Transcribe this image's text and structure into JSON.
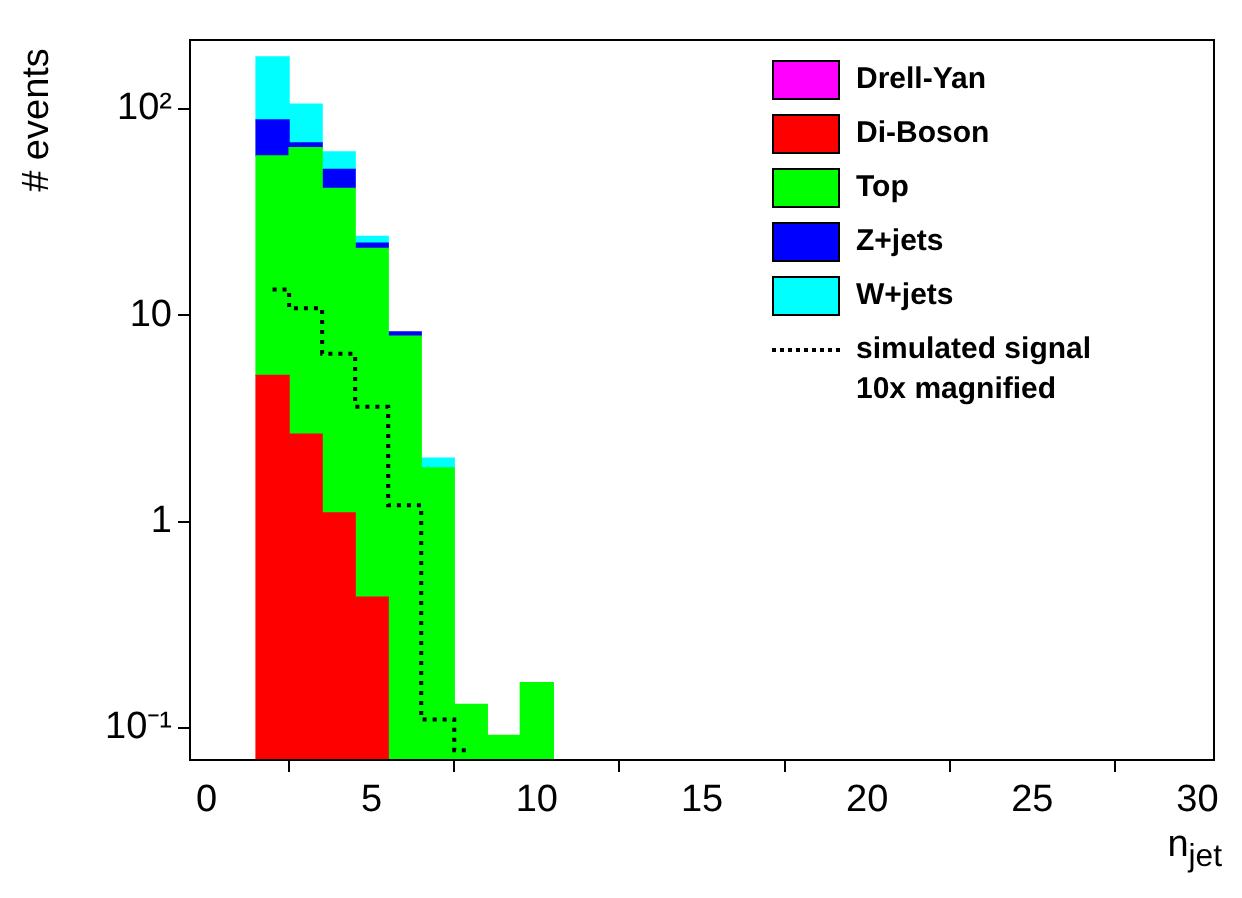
{
  "chart_data": {
    "type": "bar",
    "xlabel": "n$_{jet}$",
    "ylabel": "# events",
    "x": [
      2,
      3,
      4,
      5,
      6,
      7,
      8,
      9,
      10
    ],
    "stacked": true,
    "log": "y",
    "grid": false,
    "legend": "top right",
    "xlim": [
      -0.5,
      30.5
    ],
    "xticks": [
      0,
      5,
      10,
      15,
      20,
      25,
      30
    ],
    "ylim": [
      0.07,
      215
    ],
    "yticks": [
      {
        "value": 0.1,
        "label": "10⁻¹"
      },
      1,
      10,
      {
        "value": 100,
        "label": "10²"
      }
    ],
    "series": [
      {
        "name": "Drell-Yan",
        "color": "#ff00ff",
        "values": [
          null,
          null,
          null,
          null,
          null,
          null,
          null,
          null,
          null
        ]
      },
      {
        "name": "Di-Boson",
        "color": "#ff0000",
        "values": [
          5.1,
          2.65,
          1.1,
          0.43,
          null,
          null,
          null,
          null,
          null
        ]
      },
      {
        "name": "Top",
        "color": "#00ff00",
        "values": [
          54,
          62,
          40,
          20.6,
          7.9,
          1.82,
          0.13,
          0.092,
          0.166
        ]
      },
      {
        "name": "Z+jets",
        "color": "#0000ff",
        "values": [
          29,
          3.5,
          9.7,
          1.3,
          0.4,
          null,
          null,
          null,
          null
        ]
      },
      {
        "name": "W+jets",
        "color": "#00ffff",
        "values": [
          90,
          37,
          11,
          1.7,
          null,
          0.21,
          null,
          null,
          null
        ]
      },
      {
        "name": "simulated signal 10x magnified",
        "type": "step",
        "line_style": "dotted",
        "color": "#000000",
        "x": [
          2,
          3,
          4,
          5,
          6,
          7,
          8
        ],
        "values": [
          13.3,
          10.8,
          6.5,
          3.6,
          1.2,
          0.11,
          0.078
        ]
      }
    ]
  }
}
